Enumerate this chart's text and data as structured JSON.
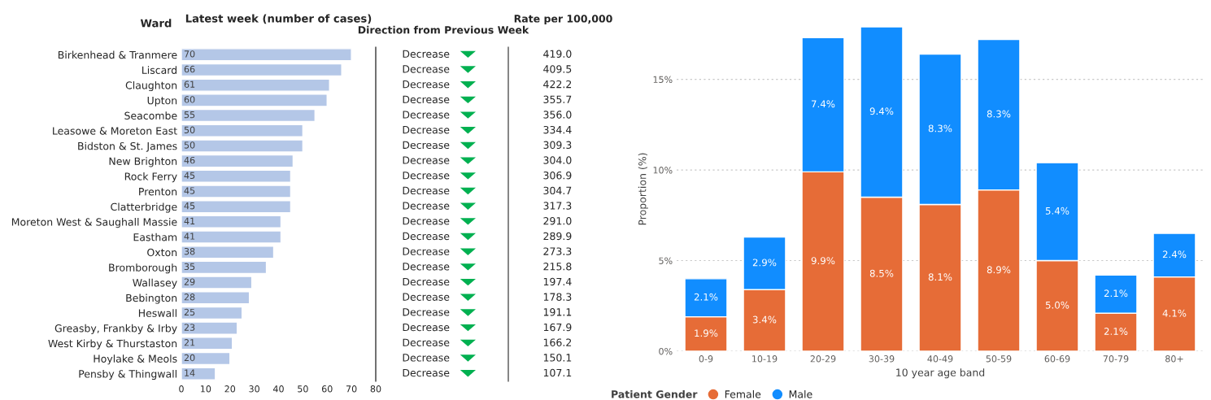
{
  "chart_data": [
    {
      "type": "bar",
      "orientation": "horizontal",
      "title": "Latest week (number of cases)",
      "ylabel": "Ward",
      "categories": [
        "Birkenhead & Tranmere",
        "Liscard",
        "Claughton",
        "Upton",
        "Seacombe",
        "Leasowe & Moreton East",
        "Bidston & St. James",
        "New Brighton",
        "Rock Ferry",
        "Prenton",
        "Clatterbridge",
        "Moreton West & Saughall Massie",
        "Eastham",
        "Oxton",
        "Bromborough",
        "Wallasey",
        "Bebington",
        "Heswall",
        "Greasby, Frankby & Irby",
        "West Kirby & Thurstaston",
        "Hoylake & Meols",
        "Pensby & Thingwall"
      ],
      "values": [
        70,
        66,
        61,
        60,
        55,
        50,
        50,
        46,
        45,
        45,
        45,
        41,
        41,
        38,
        35,
        29,
        28,
        25,
        23,
        21,
        20,
        14
      ],
      "color": "#b4c7e7",
      "xlim": [
        0,
        80
      ],
      "xticks": [
        0,
        10,
        20,
        30,
        40,
        50,
        60,
        70,
        80
      ],
      "data_labels": true
    },
    {
      "type": "other",
      "title": "Direction from Previous Week",
      "annotations": [
        "Decrease",
        "Decrease",
        "Decrease",
        "Decrease",
        "Decrease",
        "Decrease",
        "Decrease",
        "Decrease",
        "Decrease",
        "Decrease",
        "Decrease",
        "Decrease",
        "Decrease",
        "Decrease",
        "Decrease",
        "Decrease",
        "Decrease",
        "Decrease",
        "Decrease",
        "Decrease",
        "Decrease",
        "Decrease"
      ]
    },
    {
      "type": "other",
      "title": "Rate per 100,000",
      "annotations": [
        "419.0",
        "409.5",
        "422.2",
        "355.7",
        "356.0",
        "334.4",
        "309.3",
        "304.0",
        "306.9",
        "304.7",
        "317.3",
        "291.0",
        "289.9",
        "273.3",
        "215.8",
        "197.4",
        "178.3",
        "191.1",
        "167.9",
        "166.2",
        "150.1",
        "107.1"
      ]
    },
    {
      "type": "bar",
      "stacked": true,
      "xlabel": "10 year age band",
      "ylabel": "Proportion (%)",
      "legend_title": "Patient Gender",
      "categories": [
        "0-9",
        "10-19",
        "20-29",
        "30-39",
        "40-49",
        "50-59",
        "60-69",
        "70-79",
        "80+"
      ],
      "series": [
        {
          "name": "Female",
          "color": "#e66c37",
          "values": [
            1.9,
            3.4,
            9.9,
            8.5,
            8.1,
            8.9,
            5.0,
            2.1,
            4.1
          ],
          "value_labels": [
            "1.9%",
            "3.4%",
            "9.9%",
            "8.5%",
            "8.1%",
            "8.9%",
            "5.0%",
            "2.1%",
            "4.1%"
          ]
        },
        {
          "name": "Male",
          "color": "#118dff",
          "values": [
            2.1,
            2.9,
            7.4,
            9.4,
            8.3,
            8.3,
            5.4,
            2.1,
            2.4
          ],
          "value_labels": [
            "2.1%",
            "2.9%",
            "7.4%",
            "9.4%",
            "8.3%",
            "8.3%",
            "5.4%",
            "2.1%",
            "2.4%"
          ]
        }
      ],
      "ylim": [
        0,
        17.9
      ],
      "yticks": [
        {
          "value": 0,
          "label": "0%"
        },
        {
          "value": 5,
          "label": "5%"
        },
        {
          "value": 10,
          "label": "10%"
        },
        {
          "value": 15,
          "label": "15%"
        }
      ],
      "grid": "y",
      "legend": "bottom left"
    }
  ]
}
